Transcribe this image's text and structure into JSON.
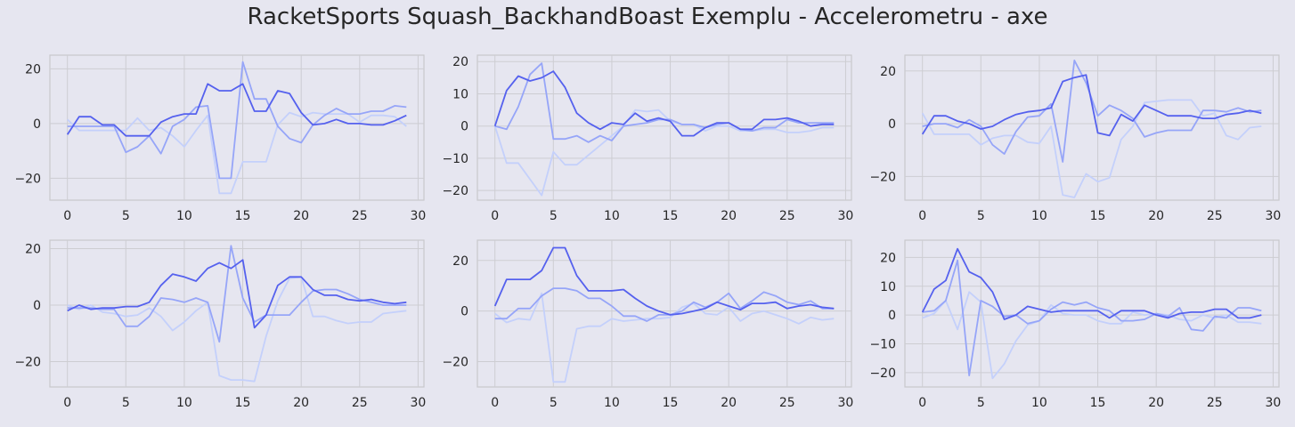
{
  "figure": {
    "title": "RacketSports Squash_BackhandBoast Exemplu - Accelerometru - axe"
  },
  "colors": {
    "series": [
      "#5561ee",
      "#96a5f8",
      "#c4d0fb"
    ]
  },
  "chart_data": [
    {
      "type": "line",
      "x": [
        0,
        1,
        2,
        3,
        4,
        5,
        6,
        7,
        8,
        9,
        10,
        11,
        12,
        13,
        14,
        15,
        16,
        17,
        18,
        19,
        20,
        21,
        22,
        23,
        24,
        25,
        26,
        27,
        28,
        29
      ],
      "xlim": [
        -1.5,
        30.5
      ],
      "ylim": [
        -28,
        25
      ],
      "xticks": [
        0,
        5,
        10,
        15,
        20,
        25,
        30
      ],
      "yticks": [
        -20,
        0,
        20
      ],
      "tick_labels_x": [
        "0",
        "5",
        "10",
        "15",
        "20",
        "25",
        "30"
      ],
      "tick_labels_y": [
        "−20",
        "0",
        "20"
      ],
      "series": [
        {
          "values": [
            -4,
            2.5,
            2.5,
            -0.5,
            -0.5,
            -4.5,
            -4.5,
            -4.5,
            0.5,
            2.5,
            3.5,
            3.5,
            14.5,
            12,
            12,
            14.5,
            4.5,
            4.5,
            12,
            11,
            4,
            -0.5,
            0,
            1.5,
            0,
            0,
            -0.5,
            -0.5,
            1,
            3
          ]
        },
        {
          "values": [
            -1,
            -1,
            -1,
            -1,
            -1,
            -10.5,
            -8.5,
            -4.5,
            -11,
            -1,
            1.5,
            6,
            6.5,
            -20,
            -20,
            22.5,
            9,
            9,
            -1,
            -5.5,
            -7,
            -0.5,
            3,
            5.5,
            3.5,
            3.5,
            4.5,
            4.5,
            6.5,
            6
          ]
        },
        {
          "values": [
            1.5,
            -2.5,
            -2.5,
            -2.5,
            -2.5,
            -2.5,
            2,
            -2.5,
            -1.5,
            -4.5,
            -8.5,
            -2.5,
            3,
            -25.5,
            -25.5,
            -14,
            -14,
            -14,
            -0.5,
            4,
            2.5,
            4,
            3.5,
            3.5,
            3.5,
            0.5,
            3,
            3,
            2.5,
            -1
          ]
        }
      ]
    },
    {
      "type": "line",
      "x": [
        0,
        1,
        2,
        3,
        4,
        5,
        6,
        7,
        8,
        9,
        10,
        11,
        12,
        13,
        14,
        15,
        16,
        17,
        18,
        19,
        20,
        21,
        22,
        23,
        24,
        25,
        26,
        27,
        28,
        29
      ],
      "xlim": [
        -1.5,
        30.5
      ],
      "ylim": [
        -23,
        22
      ],
      "xticks": [
        0,
        5,
        10,
        15,
        20,
        25,
        30
      ],
      "yticks": [
        -20,
        -10,
        0,
        10,
        20
      ],
      "tick_labels_x": [
        "0",
        "5",
        "10",
        "15",
        "20",
        "25",
        "30"
      ],
      "tick_labels_y": [
        "−20",
        "−10",
        "0",
        "10",
        "20"
      ],
      "series": [
        {
          "values": [
            0,
            11,
            15.5,
            14,
            15,
            17,
            12,
            4,
            1,
            -1,
            1,
            0.5,
            4,
            1.5,
            2.5,
            1.5,
            -3,
            -3,
            -0.5,
            1,
            1,
            -1,
            -1,
            2,
            2,
            2.5,
            1.5,
            0,
            0.5,
            0.5
          ]
        },
        {
          "values": [
            0,
            -1,
            6,
            16,
            19.5,
            -4,
            -4,
            -3,
            -5,
            -3,
            -4.5,
            0,
            0.5,
            1,
            2,
            2,
            0.5,
            0.5,
            -0.5,
            0.5,
            1,
            -1,
            -1.5,
            -0.5,
            -0.5,
            2,
            1,
            1,
            1,
            1
          ]
        },
        {
          "values": [
            0,
            -11.5,
            -11.5,
            -16.5,
            -21.5,
            -8,
            -12,
            -12,
            -9,
            -6,
            -3,
            0,
            5,
            4.5,
            5,
            1.5,
            0.5,
            0.5,
            -1.5,
            0,
            0,
            -1.5,
            -1.5,
            -1,
            -1,
            -2,
            -2,
            -1.5,
            -0.5,
            -0.5
          ]
        }
      ]
    },
    {
      "type": "line",
      "x": [
        0,
        1,
        2,
        3,
        4,
        5,
        6,
        7,
        8,
        9,
        10,
        11,
        12,
        13,
        14,
        15,
        16,
        17,
        18,
        19,
        20,
        21,
        22,
        23,
        24,
        25,
        26,
        27,
        28,
        29
      ],
      "xlim": [
        -1.5,
        30.5
      ],
      "ylim": [
        -29,
        26
      ],
      "xticks": [
        0,
        5,
        10,
        15,
        20,
        25,
        30
      ],
      "yticks": [
        -20,
        0,
        20
      ],
      "tick_labels_x": [
        "0",
        "5",
        "10",
        "15",
        "20",
        "25",
        "30"
      ],
      "tick_labels_y": [
        "−20",
        "0",
        "20"
      ],
      "series": [
        {
          "values": [
            -4,
            3,
            3,
            1,
            0,
            -2,
            -1,
            1.5,
            3.5,
            4.5,
            5,
            6,
            16,
            17.5,
            18.5,
            -3.5,
            -4.5,
            3.5,
            1,
            7,
            5,
            3,
            3,
            3,
            2,
            2,
            3.5,
            4,
            5,
            4
          ]
        },
        {
          "values": [
            -1,
            0,
            0,
            -1.5,
            1.5,
            -1,
            -8,
            -11.5,
            -3,
            2.5,
            3,
            7.5,
            -14.5,
            24,
            15.5,
            3,
            7,
            5,
            2,
            -5,
            -3.5,
            -2.5,
            -2.5,
            -2.5,
            5,
            5,
            4.5,
            6,
            4.5,
            5
          ]
        },
        {
          "values": [
            4,
            -4,
            -4,
            -4,
            -4,
            -8,
            -5.5,
            -4.5,
            -4.5,
            -7,
            -7.5,
            -1,
            -27,
            -28,
            -19,
            -22,
            -20.5,
            -6,
            -1,
            8,
            8.5,
            9,
            9,
            9,
            3,
            4,
            -4.5,
            -6,
            -1.5,
            -1
          ]
        }
      ]
    },
    {
      "type": "line",
      "x": [
        0,
        1,
        2,
        3,
        4,
        5,
        6,
        7,
        8,
        9,
        10,
        11,
        12,
        13,
        14,
        15,
        16,
        17,
        18,
        19,
        20,
        21,
        22,
        23,
        24,
        25,
        26,
        27,
        28,
        29
      ],
      "xlim": [
        -1.5,
        30.5
      ],
      "ylim": [
        -29,
        23
      ],
      "xticks": [
        0,
        5,
        10,
        15,
        20,
        25,
        30
      ],
      "yticks": [
        -20,
        0,
        20
      ],
      "tick_labels_x": [
        "0",
        "5",
        "10",
        "15",
        "20",
        "25",
        "30"
      ],
      "tick_labels_y": [
        "−20",
        "0",
        "20"
      ],
      "series": [
        {
          "values": [
            -2,
            0,
            -1.5,
            -1,
            -1,
            -0.5,
            -0.5,
            1,
            7,
            11,
            10,
            8.5,
            13,
            15,
            13,
            16,
            -8,
            -3.5,
            7,
            10,
            10,
            5.5,
            3.5,
            3.5,
            2,
            1.5,
            2,
            1,
            0.5,
            1
          ]
        },
        {
          "values": [
            -1,
            -1,
            -1,
            -1.5,
            -1.5,
            -7.5,
            -7.5,
            -4,
            2.5,
            2,
            1,
            2.5,
            1,
            -13,
            21,
            2.5,
            -6,
            -3.5,
            -3.5,
            -3.5,
            1,
            5,
            5.5,
            5.5,
            4,
            2,
            1,
            0,
            0,
            0
          ]
        },
        {
          "values": [
            0,
            -1.5,
            0,
            -2.5,
            -3,
            -4,
            -3.5,
            -1,
            -4,
            -9,
            -6,
            -2,
            1,
            -25,
            -26.5,
            -26.5,
            -27,
            -11,
            1.5,
            9.5,
            10,
            -4,
            -4,
            -5.5,
            -6.5,
            -6,
            -6,
            -3,
            -2.5,
            -2
          ]
        }
      ]
    },
    {
      "type": "line",
      "x": [
        0,
        1,
        2,
        3,
        4,
        5,
        6,
        7,
        8,
        9,
        10,
        11,
        12,
        13,
        14,
        15,
        16,
        17,
        18,
        19,
        20,
        21,
        22,
        23,
        24,
        25,
        26,
        27,
        28,
        29
      ],
      "xlim": [
        -1.5,
        30.5
      ],
      "ylim": [
        -30,
        28
      ],
      "xticks": [
        0,
        5,
        10,
        15,
        20,
        25,
        30
      ],
      "yticks": [
        -20,
        0,
        20
      ],
      "tick_labels_x": [
        "0",
        "5",
        "10",
        "15",
        "20",
        "25",
        "30"
      ],
      "tick_labels_y": [
        "−20",
        "0",
        "20"
      ],
      "series": [
        {
          "values": [
            2,
            12.5,
            12.5,
            12.5,
            16,
            25,
            25,
            14,
            8,
            8,
            8,
            8.5,
            5,
            2,
            0,
            -1.5,
            -1,
            0,
            1,
            3.5,
            2,
            0.5,
            3,
            3,
            3.5,
            1,
            2,
            2.5,
            1.5,
            1
          ]
        },
        {
          "values": [
            -3,
            -3,
            1,
            1,
            6,
            9,
            9,
            8,
            5,
            5,
            2,
            -2,
            -2,
            -4,
            -1.5,
            -1.5,
            0,
            3.5,
            1.5,
            3.5,
            7,
            1,
            4,
            7.5,
            6,
            3.5,
            2.5,
            4,
            1,
            1
          ]
        },
        {
          "values": [
            -1,
            -4.5,
            -3,
            -3.5,
            7,
            -28,
            -28,
            -7,
            -6,
            -6,
            -3,
            -4,
            -3.5,
            -3,
            -3,
            -2.5,
            1.5,
            3,
            -1,
            -1.5,
            1.5,
            -4,
            -1,
            0,
            -1.5,
            -3,
            -5,
            -2.5,
            -3.5,
            -3
          ]
        }
      ]
    },
    {
      "type": "line",
      "x": [
        0,
        1,
        2,
        3,
        4,
        5,
        6,
        7,
        8,
        9,
        10,
        11,
        12,
        13,
        14,
        15,
        16,
        17,
        18,
        19,
        20,
        21,
        22,
        23,
        24,
        25,
        26,
        27,
        28,
        29
      ],
      "xlim": [
        -1.5,
        30.5
      ],
      "ylim": [
        -25,
        26
      ],
      "xticks": [
        0,
        5,
        10,
        15,
        20,
        25,
        30
      ],
      "yticks": [
        -20,
        -10,
        0,
        10,
        20
      ],
      "tick_labels_x": [
        "0",
        "5",
        "10",
        "15",
        "20",
        "25",
        "30"
      ],
      "tick_labels_y": [
        "−20",
        "−10",
        "0",
        "10",
        "20"
      ],
      "series": [
        {
          "values": [
            1,
            9,
            12,
            23,
            15,
            13,
            8,
            -1.5,
            0,
            3,
            2,
            1,
            1.5,
            1.5,
            1.5,
            1.5,
            -1,
            1.5,
            1.5,
            1.5,
            0,
            -1,
            0.5,
            1,
            1,
            2,
            2,
            -1,
            -1,
            0
          ]
        },
        {
          "values": [
            1,
            1.5,
            5,
            19,
            -21,
            5,
            3,
            -0.5,
            0,
            -3,
            -2,
            2,
            4.5,
            3.5,
            4.5,
            2.5,
            1.5,
            -2,
            -2,
            -1.5,
            0.5,
            -0.5,
            2.5,
            -5,
            -5.5,
            -0.5,
            -1,
            2.5,
            2.5,
            1.5
          ]
        },
        {
          "values": [
            -1,
            0.5,
            5,
            -5,
            8,
            4.5,
            -22,
            -17,
            -9,
            -3.5,
            -2,
            3.5,
            0.5,
            0,
            0,
            -2,
            -3,
            -3,
            1,
            0,
            0.5,
            0,
            -1.5,
            -2,
            0,
            -1,
            0,
            -2.5,
            -2.5,
            -3
          ]
        }
      ]
    }
  ]
}
